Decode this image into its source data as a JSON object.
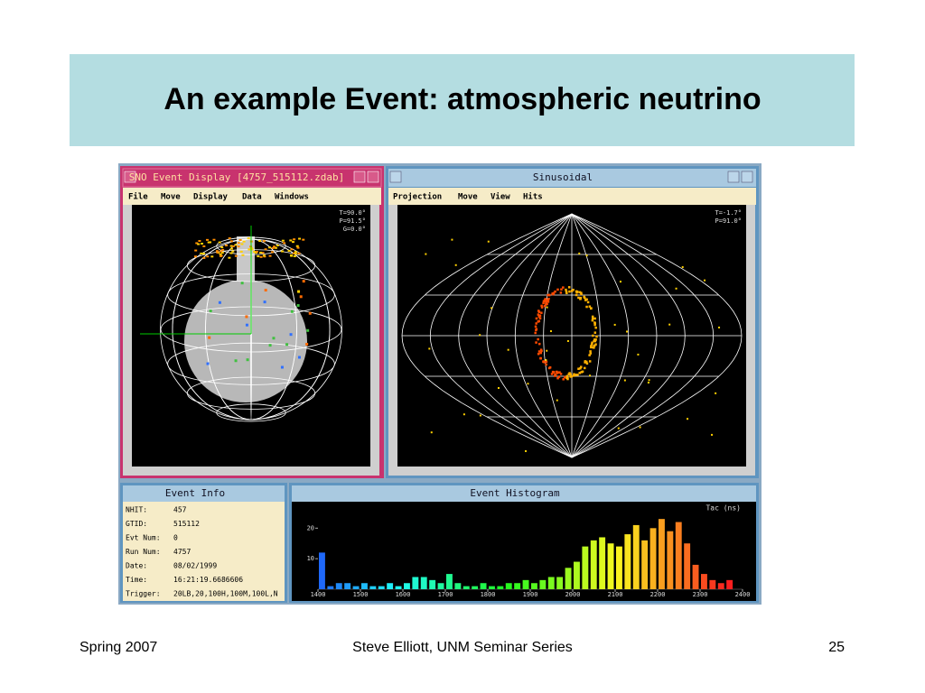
{
  "title": "An example Event: atmospheric neutrino",
  "event_display": {
    "title": "SNO Event Display [4757_515112.zdab]",
    "menu": [
      "File",
      "Move",
      "Display",
      "Data",
      "Windows"
    ],
    "angles": [
      "T=90.0°",
      "P=91.5°",
      "G=0.0°"
    ]
  },
  "sinusoidal": {
    "title": "Sinusoidal",
    "menu": [
      "Projection",
      "Move",
      "View",
      "Hits"
    ],
    "angles": [
      "T=-1.7°",
      "P=91.0°"
    ]
  },
  "event_info": {
    "title": "Event Info",
    "fields": [
      [
        "NHIT:",
        "457"
      ],
      [
        "GTID:",
        "515112"
      ],
      [
        "Evt Num:",
        "0"
      ],
      [
        "Run Num:",
        "4757"
      ],
      [
        "Date:",
        "08/02/1999"
      ],
      [
        "Time:",
        "16:21:19.6686606"
      ],
      [
        "Trigger:",
        "20LB,20,100H,100M,100L,N"
      ]
    ]
  },
  "chart_data": {
    "type": "histogram",
    "title": "Event Histogram",
    "x_label": "Tac (ns)",
    "bins": [
      1400,
      1420,
      1440,
      1460,
      1480,
      1500,
      1520,
      1540,
      1560,
      1580,
      1600,
      1620,
      1640,
      1660,
      1680,
      1700,
      1720,
      1740,
      1760,
      1780,
      1800,
      1820,
      1840,
      1860,
      1880,
      1900,
      1920,
      1940,
      1960,
      1980,
      2000,
      2020,
      2040,
      2060,
      2080,
      2100,
      2120,
      2140,
      2160,
      2180,
      2200,
      2220,
      2240,
      2260,
      2280,
      2300,
      2320,
      2340,
      2360,
      2380,
      2400
    ],
    "counts": [
      12,
      1,
      2,
      2,
      1,
      2,
      1,
      1,
      2,
      1,
      2,
      4,
      4,
      3,
      2,
      5,
      2,
      1,
      1,
      2,
      1,
      1,
      2,
      2,
      3,
      2,
      3,
      4,
      4,
      7,
      9,
      14,
      16,
      17,
      15,
      14,
      18,
      21,
      16,
      20,
      23,
      19,
      22,
      15,
      8,
      5,
      3,
      2,
      3,
      0
    ],
    "xlim": [
      1400,
      2400
    ],
    "xticks": [
      1400,
      1500,
      1600,
      1700,
      1800,
      1900,
      2000,
      2100,
      2200,
      2300,
      2400
    ],
    "ylim": [
      0,
      26
    ],
    "yticks": [
      10,
      20
    ]
  },
  "footer": {
    "left": "Spring 2007",
    "center": "Steve Elliott, UNM Seminar Series",
    "right": "25"
  }
}
